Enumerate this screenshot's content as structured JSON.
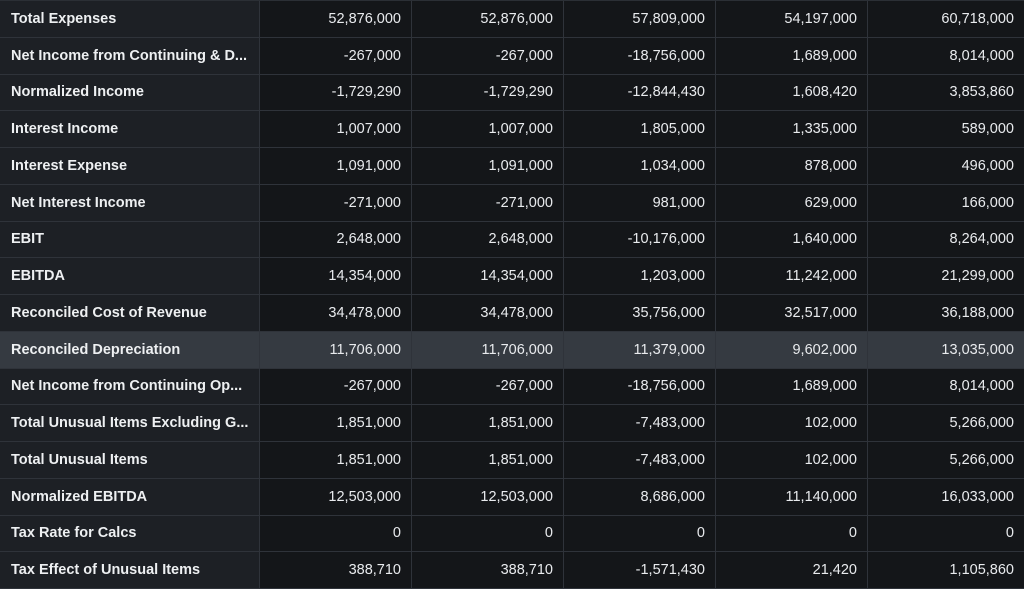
{
  "rows": [
    {
      "label": "Total Expenses",
      "values": [
        "52,876,000",
        "52,876,000",
        "57,809,000",
        "54,197,000",
        "60,718,000"
      ]
    },
    {
      "label": "Net Income from Continuing & D...",
      "values": [
        "-267,000",
        "-267,000",
        "-18,756,000",
        "1,689,000",
        "8,014,000"
      ]
    },
    {
      "label": "Normalized Income",
      "values": [
        "-1,729,290",
        "-1,729,290",
        "-12,844,430",
        "1,608,420",
        "3,853,860"
      ]
    },
    {
      "label": "Interest Income",
      "values": [
        "1,007,000",
        "1,007,000",
        "1,805,000",
        "1,335,000",
        "589,000"
      ]
    },
    {
      "label": "Interest Expense",
      "values": [
        "1,091,000",
        "1,091,000",
        "1,034,000",
        "878,000",
        "496,000"
      ]
    },
    {
      "label": "Net Interest Income",
      "values": [
        "-271,000",
        "-271,000",
        "981,000",
        "629,000",
        "166,000"
      ]
    },
    {
      "label": "EBIT",
      "values": [
        "2,648,000",
        "2,648,000",
        "-10,176,000",
        "1,640,000",
        "8,264,000"
      ]
    },
    {
      "label": "EBITDA",
      "values": [
        "14,354,000",
        "14,354,000",
        "1,203,000",
        "11,242,000",
        "21,299,000"
      ]
    },
    {
      "label": "Reconciled Cost of Revenue",
      "values": [
        "34,478,000",
        "34,478,000",
        "35,756,000",
        "32,517,000",
        "36,188,000"
      ]
    },
    {
      "label": "Reconciled Depreciation",
      "values": [
        "11,706,000",
        "11,706,000",
        "11,379,000",
        "9,602,000",
        "13,035,000"
      ],
      "highlighted": true
    },
    {
      "label": "Net Income from Continuing Op...",
      "values": [
        "-267,000",
        "-267,000",
        "-18,756,000",
        "1,689,000",
        "8,014,000"
      ]
    },
    {
      "label": "Total Unusual Items Excluding G...",
      "values": [
        "1,851,000",
        "1,851,000",
        "-7,483,000",
        "102,000",
        "5,266,000"
      ]
    },
    {
      "label": "Total Unusual Items",
      "values": [
        "1,851,000",
        "1,851,000",
        "-7,483,000",
        "102,000",
        "5,266,000"
      ]
    },
    {
      "label": "Normalized EBITDA",
      "values": [
        "12,503,000",
        "12,503,000",
        "8,686,000",
        "11,140,000",
        "16,033,000"
      ]
    },
    {
      "label": "Tax Rate for Calcs",
      "values": [
        "0",
        "0",
        "0",
        "0",
        "0"
      ]
    },
    {
      "label": "Tax Effect of Unusual Items",
      "values": [
        "388,710",
        "388,710",
        "-1,571,430",
        "21,420",
        "1,105,860"
      ]
    }
  ]
}
